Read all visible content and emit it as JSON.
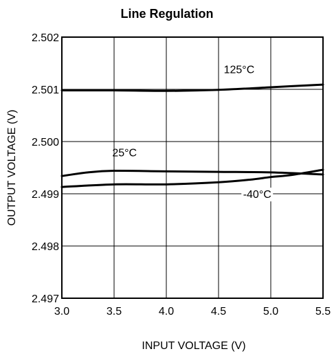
{
  "chart_data": {
    "type": "line",
    "title": "Line Regulation",
    "xlabel": "INPUT VOLTAGE (V)",
    "ylabel": "OUTPUT VOLTAGE (V)",
    "xlim": [
      3.0,
      5.5
    ],
    "ylim": [
      2.497,
      2.502
    ],
    "x_ticks": [
      "3.0",
      "3.5",
      "4.0",
      "4.5",
      "5.0",
      "5.5"
    ],
    "y_ticks": [
      "2.497",
      "2.498",
      "2.499",
      "2.500",
      "2.501",
      "2.502"
    ],
    "grid": true,
    "series": [
      {
        "name": "125°C",
        "x": [
          3.0,
          3.5,
          4.0,
          4.5,
          5.0,
          5.5
        ],
        "y": [
          2.50098,
          2.50098,
          2.50097,
          2.50099,
          2.50104,
          2.50109
        ]
      },
      {
        "name": "25°C",
        "x": [
          3.0,
          3.25,
          3.5,
          4.0,
          4.5,
          5.0,
          5.5
        ],
        "y": [
          2.49934,
          2.49941,
          2.49944,
          2.49943,
          2.49942,
          2.49941,
          2.49937
        ]
      },
      {
        "name": "-40°C",
        "x": [
          3.0,
          3.5,
          4.0,
          4.5,
          4.8,
          5.0,
          5.2,
          5.5
        ],
        "y": [
          2.49913,
          2.49918,
          2.49918,
          2.49922,
          2.49927,
          2.49932,
          2.49936,
          2.49946
        ]
      }
    ]
  }
}
